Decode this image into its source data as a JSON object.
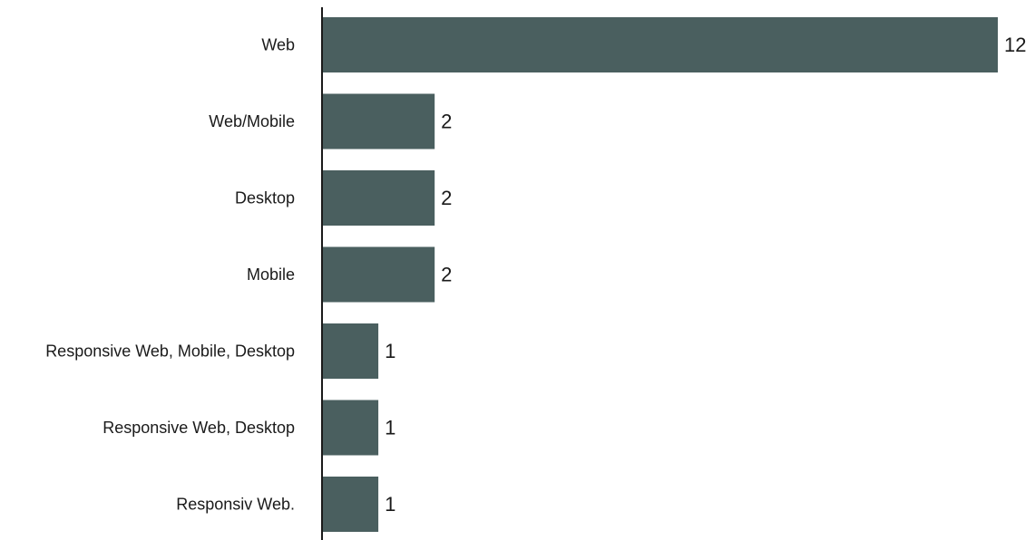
{
  "chart_data": {
    "type": "bar",
    "orientation": "horizontal",
    "categories": [
      "Web",
      "Web/Mobile",
      "Desktop",
      "Mobile",
      "Responsive Web, Mobile, Desktop",
      "Responsive Web, Desktop",
      "Responsiv Web."
    ],
    "values": [
      12,
      2,
      2,
      2,
      1,
      1,
      1
    ],
    "title": "",
    "xlabel": "",
    "ylabel": "",
    "xlim": [
      0,
      12
    ],
    "grid": false,
    "legend": "none",
    "bar_color": "#4a5f5f",
    "axis_color": "#1a1a1a",
    "data_labels": true
  }
}
